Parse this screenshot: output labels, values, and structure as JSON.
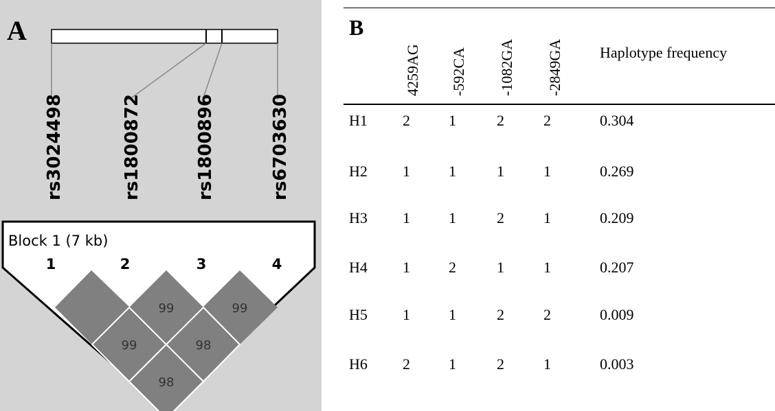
{
  "panel_a": {
    "letter": "A",
    "snps": [
      "rs3024498",
      "rs1800872",
      "rs1800896",
      "rs6703630"
    ],
    "block_label": "Block 1 (7 kb)",
    "marker_numbers": [
      "1",
      "2",
      "3",
      "4"
    ],
    "ld_values": {
      "d12": "",
      "d23": "99",
      "d34": "99",
      "d13": "99",
      "d24": "98",
      "d14": "98"
    }
  },
  "panel_b": {
    "letter": "B",
    "columns": [
      "4259AG",
      "-592CA",
      "-1082GA",
      "-2849GA"
    ],
    "freq_header": "Haplotype frequency",
    "rows": [
      {
        "id": "H1",
        "alleles": [
          "2",
          "1",
          "2",
          "2"
        ],
        "freq": "0.304"
      },
      {
        "id": "H2",
        "alleles": [
          "1",
          "1",
          "1",
          "1"
        ],
        "freq": "0.269"
      },
      {
        "id": "H3",
        "alleles": [
          "1",
          "1",
          "2",
          "1"
        ],
        "freq": "0.209"
      },
      {
        "id": "H4",
        "alleles": [
          "1",
          "2",
          "1",
          "1"
        ],
        "freq": "0.207"
      },
      {
        "id": "H5",
        "alleles": [
          "1",
          "1",
          "2",
          "2"
        ],
        "freq": "0.009"
      },
      {
        "id": "H6",
        "alleles": [
          "2",
          "1",
          "2",
          "1"
        ],
        "freq": "0.003"
      }
    ]
  },
  "colors": {
    "panel_bg": "#d4d4d4",
    "diamond": "#808080",
    "text": "#000000"
  }
}
